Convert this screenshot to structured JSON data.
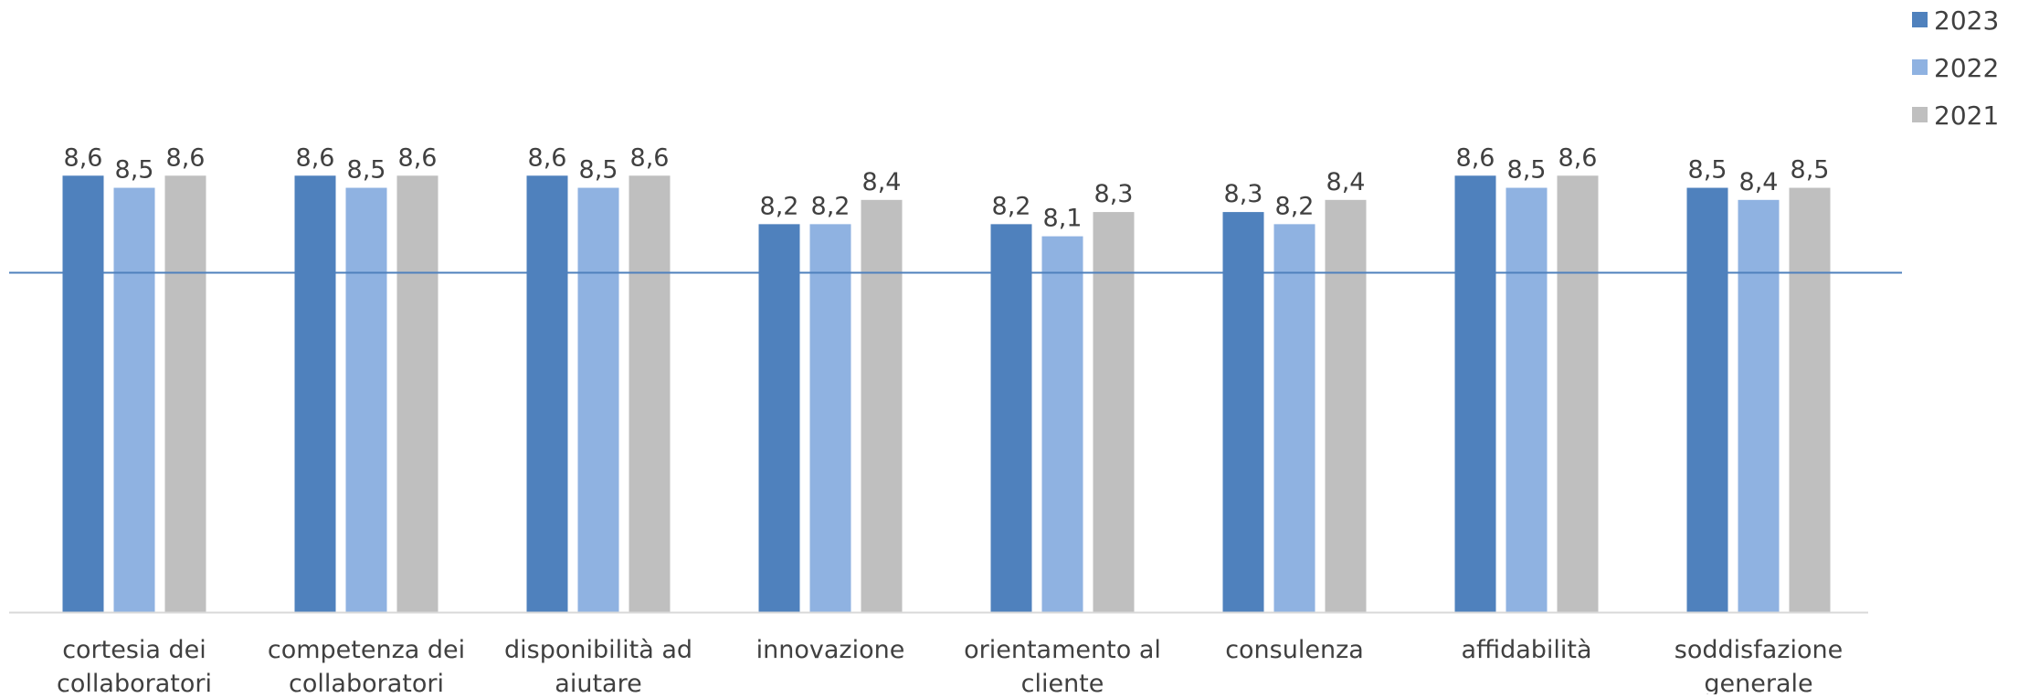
{
  "chart_data": {
    "type": "bar",
    "categories": [
      [
        "cortesia dei",
        "collaboratori"
      ],
      [
        "competenza dei",
        "collaboratori"
      ],
      [
        "disponibilità ad",
        "aiutare"
      ],
      [
        "innovazione"
      ],
      [
        "orientamento al",
        "cliente"
      ],
      [
        "consulenza"
      ],
      [
        "affidabilità"
      ],
      [
        "soddisfazione",
        "generale"
      ]
    ],
    "series": [
      {
        "name": "2023",
        "color": "#4f81bd",
        "values": [
          8.6,
          8.6,
          8.6,
          8.2,
          8.2,
          8.3,
          8.6,
          8.5
        ],
        "labels": [
          "8,6",
          "8,6",
          "8,6",
          "8,2",
          "8,2",
          "8,3",
          "8,6",
          "8,5"
        ]
      },
      {
        "name": "2022",
        "color": "#8fb2e1",
        "values": [
          8.5,
          8.5,
          8.5,
          8.2,
          8.1,
          8.2,
          8.5,
          8.4
        ],
        "labels": [
          "8,5",
          "8,5",
          "8,5",
          "8,2",
          "8,1",
          "8,2",
          "8,5",
          "8,4"
        ]
      },
      {
        "name": "2021",
        "color": "#bfbfbf",
        "values": [
          8.6,
          8.6,
          8.6,
          8.4,
          8.3,
          8.4,
          8.6,
          8.5
        ],
        "labels": [
          "8,6",
          "8,6",
          "8,6",
          "8,4",
          "8,3",
          "8,4",
          "8,6",
          "8,5"
        ]
      }
    ],
    "ylim": [
      5.0,
      8.9
    ],
    "reference_line": {
      "value": 7.8,
      "color": "#4f81bd"
    },
    "axis_color": "#d9d9d9",
    "legend_position": "top-right",
    "grid": false
  }
}
